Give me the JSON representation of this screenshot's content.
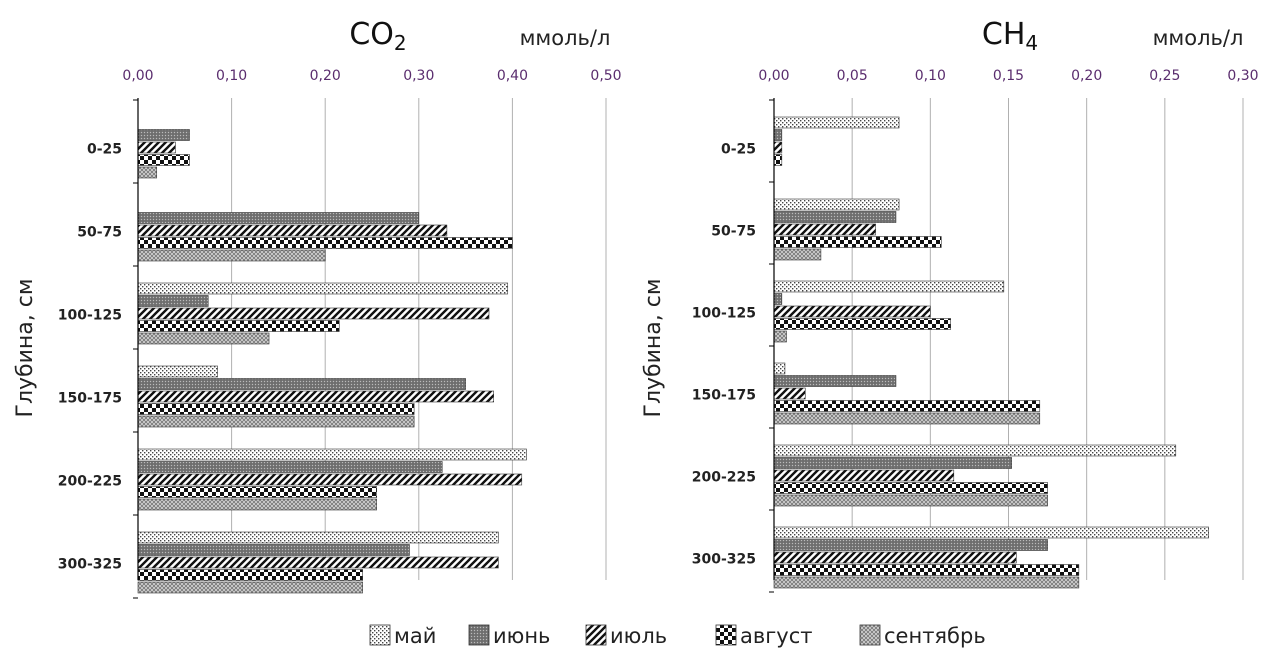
{
  "legend": [
    {
      "label": "май",
      "pattern": "dots"
    },
    {
      "label": "июнь",
      "pattern": "dense"
    },
    {
      "label": "июль",
      "pattern": "diag"
    },
    {
      "label": "август",
      "pattern": "checker"
    },
    {
      "label": "сентябрь",
      "pattern": "cross"
    }
  ],
  "ylabel": "Глубина, см",
  "colors": {
    "axis": "#000000",
    "grid": "#b0b0b0",
    "tick_text": "#5a2d6e"
  },
  "chart_data": [
    {
      "type": "bar",
      "orientation": "horizontal",
      "title": "CO",
      "title_sub": "2",
      "unit": "ммоль/л",
      "xlim": [
        0,
        0.5
      ],
      "xticks": [
        "0,00",
        "0,10",
        "0,20",
        "0,30",
        "0,40",
        "0,50"
      ],
      "categories": [
        "0-25",
        "50-75",
        "100-125",
        "150-175",
        "200-225",
        "300-325"
      ],
      "series": [
        {
          "name": "май",
          "values": [
            0.0,
            0.0,
            0.395,
            0.085,
            0.415,
            0.385
          ]
        },
        {
          "name": "июнь",
          "values": [
            0.055,
            0.3,
            0.075,
            0.35,
            0.325,
            0.29
          ]
        },
        {
          "name": "июль",
          "values": [
            0.04,
            0.33,
            0.375,
            0.38,
            0.41,
            0.385
          ]
        },
        {
          "name": "август",
          "values": [
            0.055,
            0.4,
            0.215,
            0.295,
            0.255,
            0.24
          ]
        },
        {
          "name": "сентябрь",
          "values": [
            0.02,
            0.2,
            0.14,
            0.295,
            0.255,
            0.24
          ]
        }
      ]
    },
    {
      "type": "bar",
      "orientation": "horizontal",
      "title": "CH",
      "title_sub": "4",
      "unit": "ммоль/л",
      "xlim": [
        0,
        0.3
      ],
      "xticks": [
        "0,00",
        "0,05",
        "0,10",
        "0,15",
        "0,20",
        "0,25",
        "0,30"
      ],
      "categories": [
        "0-25",
        "50-75",
        "100-125",
        "150-175",
        "200-225",
        "300-325"
      ],
      "series": [
        {
          "name": "май",
          "values": [
            0.08,
            0.08,
            0.147,
            0.007,
            0.257,
            0.278
          ]
        },
        {
          "name": "июнь",
          "values": [
            0.005,
            0.078,
            0.005,
            0.078,
            0.152,
            0.175
          ]
        },
        {
          "name": "июль",
          "values": [
            0.005,
            0.065,
            0.1,
            0.02,
            0.115,
            0.155
          ]
        },
        {
          "name": "август",
          "values": [
            0.005,
            0.107,
            0.113,
            0.17,
            0.175,
            0.195
          ]
        },
        {
          "name": "сентябрь",
          "values": [
            0.0,
            0.03,
            0.008,
            0.17,
            0.175,
            0.195
          ]
        }
      ]
    }
  ]
}
